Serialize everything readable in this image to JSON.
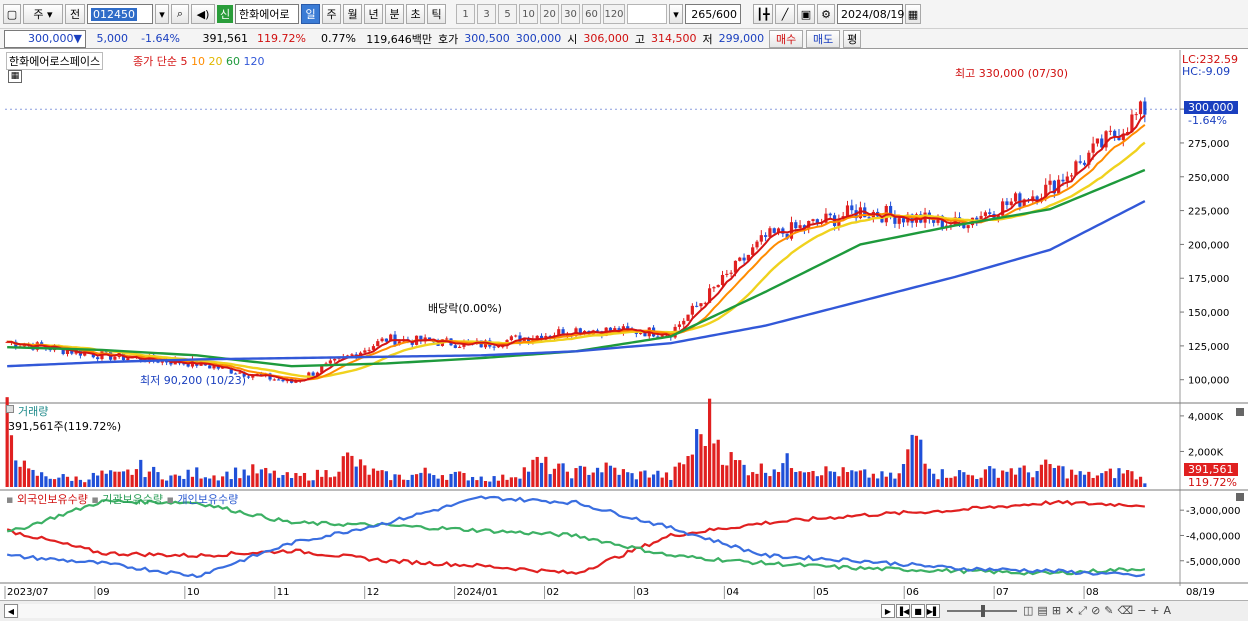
{
  "toolbar": {
    "market": "주",
    "prev": "전",
    "code": "012450",
    "new_badge": "신",
    "name": "한화에어로",
    "periods": [
      "일",
      "주",
      "월",
      "년",
      "분",
      "초",
      "틱"
    ],
    "intervals": [
      "1",
      "3",
      "5",
      "10",
      "20",
      "30",
      "60",
      "120"
    ],
    "count": "265",
    "total": "/600",
    "date": "2024/08/19"
  },
  "quote": {
    "price": "300,000",
    "arrow": "▼",
    "change": "5,000",
    "change_pct": "-1.64%",
    "volume": "391,561",
    "volume_pct": "119.72%",
    "turnover_pct": "0.77%",
    "amount": "119,646백만",
    "bid_label": "호가",
    "bid_ask": "300,500",
    "bid": "300,000",
    "open_label": "시",
    "open": "306,000",
    "high_label": "고",
    "high": "314,500",
    "low_label": "저",
    "low": "299,000",
    "buy": "매수",
    "sell": "매도",
    "avg": "평"
  },
  "price_pane": {
    "legend_name": "한화에어로스페이스",
    "legend_ma": "종가 단순",
    "ma": [
      "5",
      "10",
      "20",
      "60",
      "120"
    ],
    "lc": "LC:232.59",
    "hc": "HC:-9.09",
    "y_ticks": [
      "300,000",
      "275,000",
      "250,000",
      "225,000",
      "200,000",
      "175,000",
      "150,000",
      "125,000",
      "100,000"
    ],
    "current_price": "300,000",
    "current_pct": "-1.64%",
    "high_note": "최고 330,000 (07/30)",
    "low_note": "최저 90,200 (10/23)",
    "dividend_note": "배당락(0.00%)"
  },
  "volume_pane": {
    "title": "거래량",
    "note": "391,561주(119.72%)",
    "y_ticks": [
      "4,000K",
      "2,000K"
    ],
    "current": "391,561",
    "current_pct": "119.72%"
  },
  "holding_pane": {
    "legend": [
      "외국인보유수량",
      "기관보유수량",
      "개인보유수량"
    ],
    "y_ticks": [
      "-3,000,000",
      "-4,000,000",
      "-5,000,000"
    ]
  },
  "x_axis": {
    "labels": [
      "2023/07",
      "09",
      "10",
      "11",
      "12",
      "2024/01",
      "02",
      "03",
      "04",
      "05",
      "06",
      "07",
      "08"
    ],
    "end": "08/19"
  },
  "colors": {
    "up": "#e02020",
    "down": "#2050d8",
    "ma5": "#d41414",
    "ma10": "#ff8c00",
    "ma20": "#f0d21e",
    "ma60": "#1e9a3c",
    "ma120": "#3258d8",
    "foreign": "#e02020",
    "inst": "#3cb064",
    "indiv": "#3a6ee0"
  },
  "chart_data": [
    {
      "type": "line",
      "title": "한화에어로스페이스",
      "ylim": [
        85000,
        340000
      ],
      "x": [
        "2023/07",
        "09",
        "10",
        "11",
        "12",
        "2024/01",
        "02",
        "03",
        "04",
        "05",
        "06",
        "07",
        "08/19"
      ],
      "series": [
        {
          "name": "종가",
          "values": [
            128000,
            118000,
            112000,
            98000,
            130000,
            126000,
            137000,
            135000,
            205000,
            225000,
            215000,
            242000,
            300000
          ]
        },
        {
          "name": "60",
          "values": [
            124000,
            122000,
            118000,
            110000,
            112000,
            116000,
            121000,
            132000,
            165000,
            200000,
            214000,
            226000,
            255000
          ]
        },
        {
          "name": "120",
          "values": [
            110000,
            113000,
            115000,
            116000,
            117000,
            118000,
            121000,
            127000,
            140000,
            158000,
            176000,
            196000,
            232000
          ]
        }
      ]
    },
    {
      "type": "bar",
      "title": "거래량",
      "ylim": [
        0,
        4500
      ],
      "series": [
        {
          "name": "거래량",
          "values": [
            4200,
            900,
            700,
            600,
            500,
            800,
            700,
            1200,
            800,
            600,
            900,
            700,
            900,
            1000,
            800,
            600,
            700,
            900,
            1800,
            1000,
            700,
            600,
            900,
            800,
            700,
            600,
            500,
            900,
            1500,
            1100,
            900,
            1200,
            1100,
            700,
            900,
            600,
            2000,
            4200,
            1800,
            1200,
            1100,
            1500,
            1400,
            1000,
            900,
            800,
            700,
            600,
            3400,
            800,
            900,
            700,
            1000,
            1100,
            900,
            1300,
            900,
            700,
            800,
            1000,
            400
          ]
        }
      ]
    },
    {
      "type": "line",
      "title": "외국인보유수량",
      "ylim": [
        -5800000,
        -2400000
      ],
      "x": [
        "2023/07",
        "09",
        "10",
        "11",
        "12",
        "2024/01",
        "02",
        "03",
        "04",
        "05",
        "06",
        "07",
        "08/19"
      ],
      "series": [
        {
          "name": "외국인보유수량",
          "values": [
            -3800000,
            -4700000,
            -4800000,
            -4600000,
            -5000000,
            -5200000,
            -5500000,
            -4000000,
            -3500000,
            -3200000,
            -3000000,
            -2700000,
            -2800000
          ]
        },
        {
          "name": "기관보유수량",
          "values": [
            -3900000,
            -2650000,
            -2700000,
            -3500000,
            -3600000,
            -3800000,
            -4000000,
            -4800000,
            -5100000,
            -5300000,
            -5400000,
            -5500000,
            -5300000
          ]
        },
        {
          "name": "개인보유수량",
          "values": [
            -4800000,
            -5100000,
            -5600000,
            -4300000,
            -3500000,
            -2500000,
            -2700000,
            -3700000,
            -4800000,
            -5000000,
            -5300000,
            -5400000,
            -5600000
          ]
        }
      ]
    }
  ]
}
